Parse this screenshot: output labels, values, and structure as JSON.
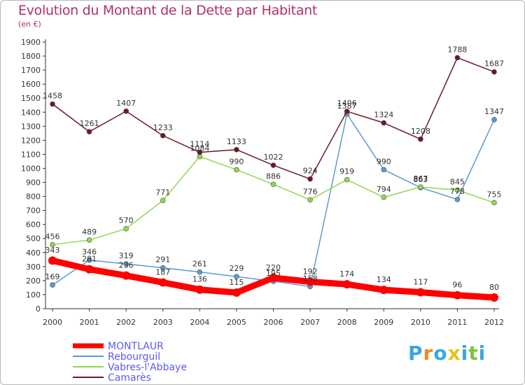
{
  "chart_data": {
    "type": "line",
    "title": "Evolution du Montant de la Dette par Habitant",
    "ylabel": "(en €)",
    "xlabel": "",
    "ylim": [
      0,
      1900
    ],
    "yticks": [
      0,
      100,
      200,
      300,
      400,
      500,
      600,
      700,
      800,
      900,
      1000,
      1100,
      1200,
      1300,
      1400,
      1500,
      1600,
      1700,
      1800,
      1900
    ],
    "categories": [
      "2000",
      "2001",
      "2002",
      "2003",
      "2004",
      "2005",
      "2006",
      "2007",
      "2008",
      "2009",
      "2010",
      "2011",
      "2012"
    ],
    "grid": false,
    "legend_position": "bottom-left",
    "series": [
      {
        "name": "MONTLAUR",
        "color": "#ff0000",
        "values": [
          343,
          281,
          236,
          187,
          136,
          115,
          220,
          192,
          174,
          134,
          117,
          96,
          80
        ]
      },
      {
        "name": "Rebourguil",
        "color": "#5a9ad2",
        "values": [
          169,
          346,
          319,
          291,
          261,
          229,
          195,
          158,
          1387,
          990,
          863,
          778,
          1347
        ]
      },
      {
        "name": "Vabres-l'Abbaye",
        "color": "#90d850",
        "values": [
          456,
          489,
          570,
          771,
          1084,
          990,
          886,
          776,
          919,
          794,
          867,
          845,
          755
        ]
      },
      {
        "name": "Camarès",
        "color": "#6b1a22",
        "values": [
          1458,
          1261,
          1407,
          1233,
          1114,
          1133,
          1022,
          924,
          1406,
          1324,
          1208,
          1788,
          1687
        ]
      }
    ]
  },
  "logo": {
    "text": "Proxiti",
    "letters": [
      {
        "ch": "P",
        "color": "#3aa6e0"
      },
      {
        "ch": "r",
        "color": "#f08a1c"
      },
      {
        "ch": "o",
        "color": "#3aa6e0"
      },
      {
        "ch": "x",
        "color": "#e8c21a"
      },
      {
        "ch": "i",
        "color": "#3aa6e0"
      },
      {
        "ch": "t",
        "color": "#7fc241"
      },
      {
        "ch": "i",
        "color": "#3aa6e0"
      }
    ]
  }
}
